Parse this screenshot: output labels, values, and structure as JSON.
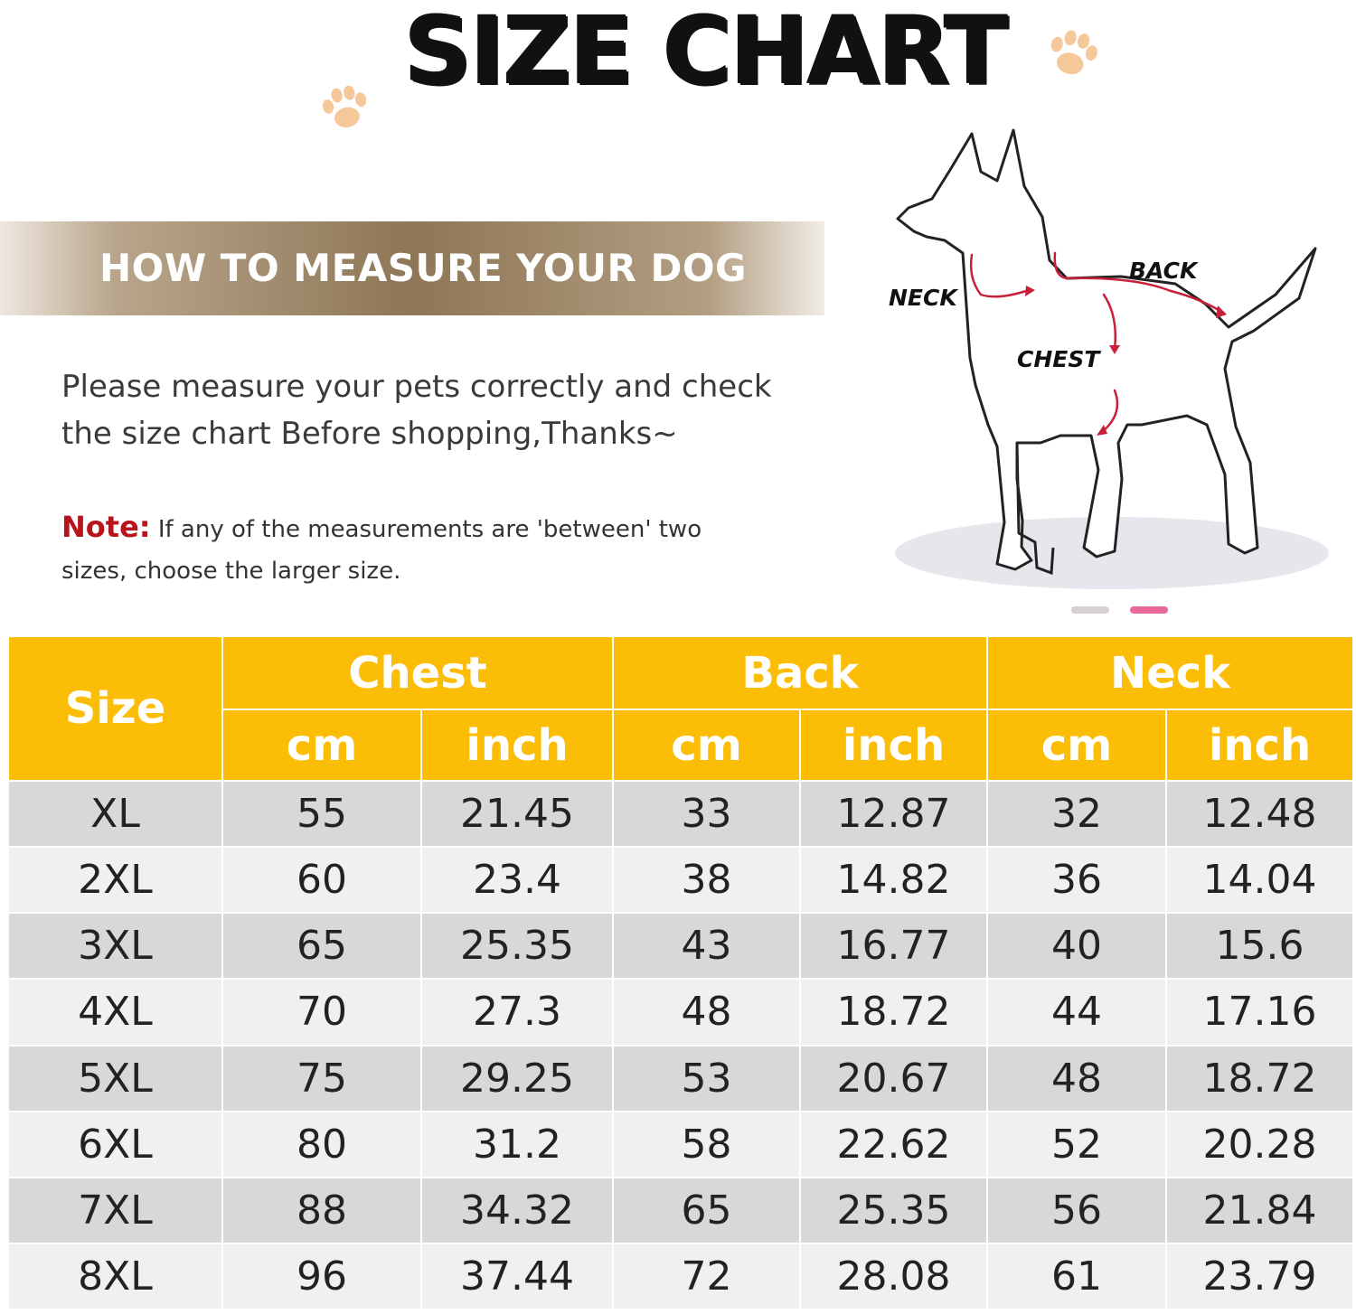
{
  "title": "SIZE CHART",
  "banner": {
    "label": "HOW TO MEASURE YOUR DOG"
  },
  "intro": {
    "line1": "Please measure your pets correctly and check",
    "line2": "the size chart Before shopping,Thanks~"
  },
  "note": {
    "label": "Note:",
    "text_line1": "If any of the measurements are 'between' two",
    "text_line2": "sizes, choose the larger size."
  },
  "diagram": {
    "neck_label": "NECK",
    "back_label": "BACK",
    "chest_label": "CHEST"
  },
  "colors": {
    "header": "#fcbd07",
    "row_dark": "#d8d8d8",
    "row_light": "#f0f0f0",
    "note_red": "#b8141c",
    "arrow": "#c8203a",
    "paw": "#f5c89a"
  },
  "table": {
    "size_header": "Size",
    "groups": [
      "Chest",
      "Back",
      "Neck"
    ],
    "units": [
      "cm",
      "inch",
      "cm",
      "inch",
      "cm",
      "inch"
    ],
    "rows": [
      [
        "XL",
        "55",
        "21.45",
        "33",
        "12.87",
        "32",
        "12.48"
      ],
      [
        "2XL",
        "60",
        "23.4",
        "38",
        "14.82",
        "36",
        "14.04"
      ],
      [
        "3XL",
        "65",
        "25.35",
        "43",
        "16.77",
        "40",
        "15.6"
      ],
      [
        "4XL",
        "70",
        "27.3",
        "48",
        "18.72",
        "44",
        "17.16"
      ],
      [
        "5XL",
        "75",
        "29.25",
        "53",
        "20.67",
        "48",
        "18.72"
      ],
      [
        "6XL",
        "80",
        "31.2",
        "58",
        "22.62",
        "52",
        "20.28"
      ],
      [
        "7XL",
        "88",
        "34.32",
        "65",
        "25.35",
        "56",
        "21.84"
      ],
      [
        "8XL",
        "96",
        "37.44",
        "72",
        "28.08",
        "61",
        "23.79"
      ]
    ]
  }
}
